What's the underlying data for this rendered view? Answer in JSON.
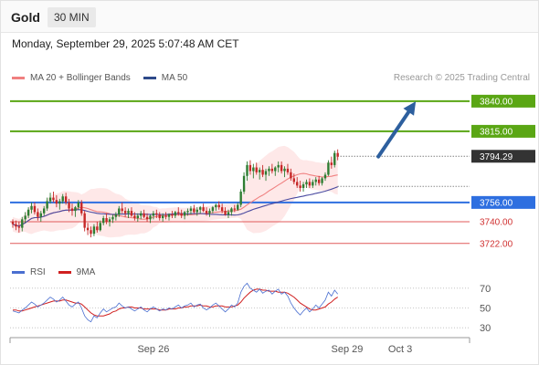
{
  "header": {
    "title": "Gold",
    "timeframe": "30 MIN"
  },
  "datetime": "Monday, September 29, 2025 5:07:48 AM CET",
  "legend": {
    "ma20_label": "MA 20 + Bollinger Bands",
    "ma50_label": "MA 50",
    "credit": "Research © 2025 Trading Central"
  },
  "rsi_legend": {
    "rsi_label": "RSI",
    "ma_label": "9MA"
  },
  "colors": {
    "up": "#2e7d32",
    "down": "#c62828",
    "resistance": "#5aa614",
    "support": "#2e6fe0",
    "price_box": "#333333",
    "minor_support": "#e05a5a",
    "ma20": "#f08080",
    "ma50": "#4a4aa0",
    "bands": "#fde0e0",
    "arrow": "#2d5f9e",
    "rsi": "#4a6fd0",
    "rsi_ma": "#d02020"
  },
  "chart_data": [
    {
      "type": "candlestick",
      "instrument": "Gold",
      "timeframe": "30 MIN",
      "levels": [
        {
          "value": 3840.0,
          "label": "3840.00",
          "kind": "resistance"
        },
        {
          "value": 3815.0,
          "label": "3815.00",
          "kind": "resistance"
        },
        {
          "value": 3794.29,
          "label": "3794.29",
          "kind": "last-price"
        },
        {
          "value": 3756.0,
          "label": "3756.00",
          "kind": "support"
        },
        {
          "value": 3740.0,
          "label": "3740.00",
          "kind": "minor-support"
        },
        {
          "value": 3722.0,
          "label": "3722.00",
          "kind": "minor-support"
        }
      ],
      "x_tick_labels": [
        "Sep 26",
        "Sep 29",
        "Oct 3"
      ],
      "x_ticks_bar_index": [
        45,
        107,
        124
      ],
      "ylim": [
        3712,
        3852
      ],
      "projection": {
        "from_bar": 117,
        "from_value": 3794,
        "to_bar": 128,
        "to_value": 3836
      },
      "candles": [
        [
          3740,
          3742,
          3735,
          3738
        ],
        [
          3738,
          3741,
          3733,
          3736
        ],
        [
          3736,
          3740,
          3731,
          3735
        ],
        [
          3735,
          3744,
          3732,
          3742
        ],
        [
          3742,
          3748,
          3739,
          3745
        ],
        [
          3745,
          3752,
          3743,
          3750
        ],
        [
          3750,
          3756,
          3747,
          3753
        ],
        [
          3753,
          3756,
          3746,
          3748
        ],
        [
          3748,
          3751,
          3741,
          3744
        ],
        [
          3744,
          3749,
          3740,
          3747
        ],
        [
          3747,
          3753,
          3745,
          3751
        ],
        [
          3751,
          3760,
          3749,
          3757
        ],
        [
          3757,
          3764,
          3755,
          3760
        ],
        [
          3760,
          3765,
          3756,
          3758
        ],
        [
          3758,
          3762,
          3752,
          3755
        ],
        [
          3755,
          3759,
          3750,
          3757
        ],
        [
          3757,
          3763,
          3755,
          3761
        ],
        [
          3761,
          3764,
          3754,
          3756
        ],
        [
          3756,
          3759,
          3748,
          3751
        ],
        [
          3751,
          3755,
          3745,
          3749
        ],
        [
          3749,
          3753,
          3744,
          3752
        ],
        [
          3752,
          3758,
          3750,
          3756
        ],
        [
          3756,
          3758,
          3745,
          3747
        ],
        [
          3747,
          3749,
          3732,
          3735
        ],
        [
          3735,
          3739,
          3729,
          3733
        ],
        [
          3733,
          3736,
          3727,
          3730
        ],
        [
          3730,
          3738,
          3728,
          3736
        ],
        [
          3736,
          3740,
          3731,
          3733
        ],
        [
          3733,
          3741,
          3732,
          3739
        ],
        [
          3739,
          3745,
          3737,
          3743
        ],
        [
          3743,
          3747,
          3738,
          3740
        ],
        [
          3740,
          3744,
          3736,
          3742
        ],
        [
          3742,
          3746,
          3739,
          3744
        ],
        [
          3744,
          3748,
          3741,
          3746
        ],
        [
          3746,
          3753,
          3744,
          3751
        ],
        [
          3751,
          3756,
          3747,
          3749
        ],
        [
          3749,
          3752,
          3744,
          3747
        ],
        [
          3747,
          3751,
          3743,
          3749
        ],
        [
          3749,
          3752,
          3744,
          3745
        ],
        [
          3745,
          3748,
          3741,
          3743
        ],
        [
          3743,
          3747,
          3740,
          3745
        ],
        [
          3745,
          3749,
          3742,
          3747
        ],
        [
          3747,
          3750,
          3743,
          3744
        ],
        [
          3744,
          3747,
          3740,
          3742
        ],
        [
          3742,
          3746,
          3739,
          3745
        ],
        [
          3745,
          3749,
          3742,
          3747
        ],
        [
          3747,
          3750,
          3743,
          3746
        ],
        [
          3746,
          3748,
          3741,
          3743
        ],
        [
          3743,
          3747,
          3740,
          3745
        ],
        [
          3745,
          3748,
          3742,
          3744
        ],
        [
          3744,
          3747,
          3741,
          3746
        ],
        [
          3746,
          3749,
          3743,
          3745
        ],
        [
          3745,
          3749,
          3743,
          3748
        ],
        [
          3748,
          3752,
          3745,
          3747
        ],
        [
          3747,
          3750,
          3743,
          3745
        ],
        [
          3745,
          3749,
          3742,
          3748
        ],
        [
          3748,
          3751,
          3745,
          3749
        ],
        [
          3749,
          3753,
          3746,
          3751
        ],
        [
          3751,
          3754,
          3747,
          3748
        ],
        [
          3748,
          3752,
          3745,
          3750
        ],
        [
          3750,
          3753,
          3747,
          3752
        ],
        [
          3752,
          3755,
          3748,
          3749
        ],
        [
          3749,
          3752,
          3745,
          3747
        ],
        [
          3747,
          3751,
          3744,
          3749
        ],
        [
          3749,
          3753,
          3747,
          3752
        ],
        [
          3752,
          3755,
          3749,
          3754
        ],
        [
          3754,
          3757,
          3750,
          3752
        ],
        [
          3752,
          3755,
          3747,
          3749
        ],
        [
          3749,
          3752,
          3745,
          3746
        ],
        [
          3746,
          3750,
          3743,
          3748
        ],
        [
          3748,
          3752,
          3745,
          3751
        ],
        [
          3751,
          3754,
          3748,
          3750
        ],
        [
          3750,
          3756,
          3749,
          3754
        ],
        [
          3754,
          3767,
          3752,
          3765
        ],
        [
          3765,
          3781,
          3763,
          3778
        ],
        [
          3778,
          3790,
          3774,
          3787
        ],
        [
          3787,
          3791,
          3779,
          3782
        ],
        [
          3782,
          3788,
          3776,
          3785
        ],
        [
          3785,
          3789,
          3779,
          3781
        ],
        [
          3781,
          3785,
          3775,
          3783
        ],
        [
          3783,
          3787,
          3777,
          3779
        ],
        [
          3779,
          3784,
          3774,
          3782
        ],
        [
          3782,
          3786,
          3778,
          3784
        ],
        [
          3784,
          3788,
          3780,
          3782
        ],
        [
          3782,
          3786,
          3778,
          3785
        ],
        [
          3785,
          3790,
          3781,
          3787
        ],
        [
          3787,
          3790,
          3780,
          3782
        ],
        [
          3782,
          3786,
          3777,
          3784
        ],
        [
          3784,
          3788,
          3779,
          3781
        ],
        [
          3781,
          3784,
          3774,
          3776
        ],
        [
          3776,
          3780,
          3771,
          3773
        ],
        [
          3773,
          3777,
          3768,
          3770
        ],
        [
          3770,
          3774,
          3765,
          3768
        ],
        [
          3768,
          3773,
          3765,
          3771
        ],
        [
          3771,
          3775,
          3768,
          3773
        ],
        [
          3773,
          3776,
          3768,
          3770
        ],
        [
          3770,
          3775,
          3768,
          3773
        ],
        [
          3773,
          3777,
          3770,
          3775
        ],
        [
          3775,
          3778,
          3770,
          3772
        ],
        [
          3772,
          3777,
          3770,
          3776
        ],
        [
          3776,
          3781,
          3774,
          3779
        ],
        [
          3779,
          3791,
          3778,
          3789
        ],
        [
          3789,
          3794,
          3784,
          3787
        ],
        [
          3787,
          3799,
          3785,
          3797
        ],
        [
          3797,
          3800,
          3791,
          3794
        ]
      ]
    },
    {
      "type": "line",
      "name": "RSI",
      "y_tick_labels": [
        "70",
        "50",
        "30"
      ],
      "ylim": [
        20,
        80
      ],
      "rsi_values": [
        47,
        46,
        45,
        48,
        50,
        53,
        56,
        54,
        51,
        53,
        55,
        58,
        61,
        59,
        56,
        58,
        61,
        57,
        53,
        51,
        54,
        56,
        50,
        42,
        38,
        36,
        42,
        40,
        45,
        49,
        46,
        48,
        50,
        51,
        55,
        52,
        50,
        51,
        49,
        47,
        49,
        51,
        48,
        46,
        49,
        51,
        49,
        47,
        49,
        48,
        50,
        49,
        51,
        53,
        50,
        52,
        53,
        55,
        51,
        53,
        54,
        50,
        48,
        50,
        53,
        55,
        52,
        49,
        46,
        49,
        53,
        51,
        55,
        66,
        72,
        75,
        70,
        68,
        66,
        69,
        65,
        67,
        68,
        64,
        67,
        69,
        64,
        66,
        62,
        55,
        50,
        46,
        43,
        47,
        50,
        46,
        49,
        53,
        50,
        54,
        58,
        66,
        62,
        68,
        64
      ],
      "ma_values": [
        48,
        48,
        47,
        47,
        48,
        49,
        50,
        51,
        52,
        53,
        54,
        55,
        56,
        57,
        57,
        57,
        58,
        58,
        57,
        56,
        55,
        55,
        54,
        51,
        48,
        45,
        43,
        42,
        42,
        42,
        43,
        44,
        46,
        47,
        49,
        50,
        50,
        51,
        51,
        50,
        50,
        50,
        49,
        49,
        49,
        49,
        49,
        48,
        48,
        48,
        49,
        49,
        49,
        50,
        50,
        51,
        51,
        52,
        52,
        52,
        53,
        52,
        52,
        51,
        51,
        52,
        52,
        52,
        51,
        51,
        51,
        52,
        53,
        56,
        60,
        63,
        66,
        68,
        69,
        69,
        68,
        68,
        67,
        67,
        67,
        66,
        66,
        66,
        65,
        63,
        61,
        58,
        55,
        53,
        51,
        49,
        48,
        48,
        49,
        50,
        51,
        54,
        56,
        59,
        61
      ]
    }
  ]
}
